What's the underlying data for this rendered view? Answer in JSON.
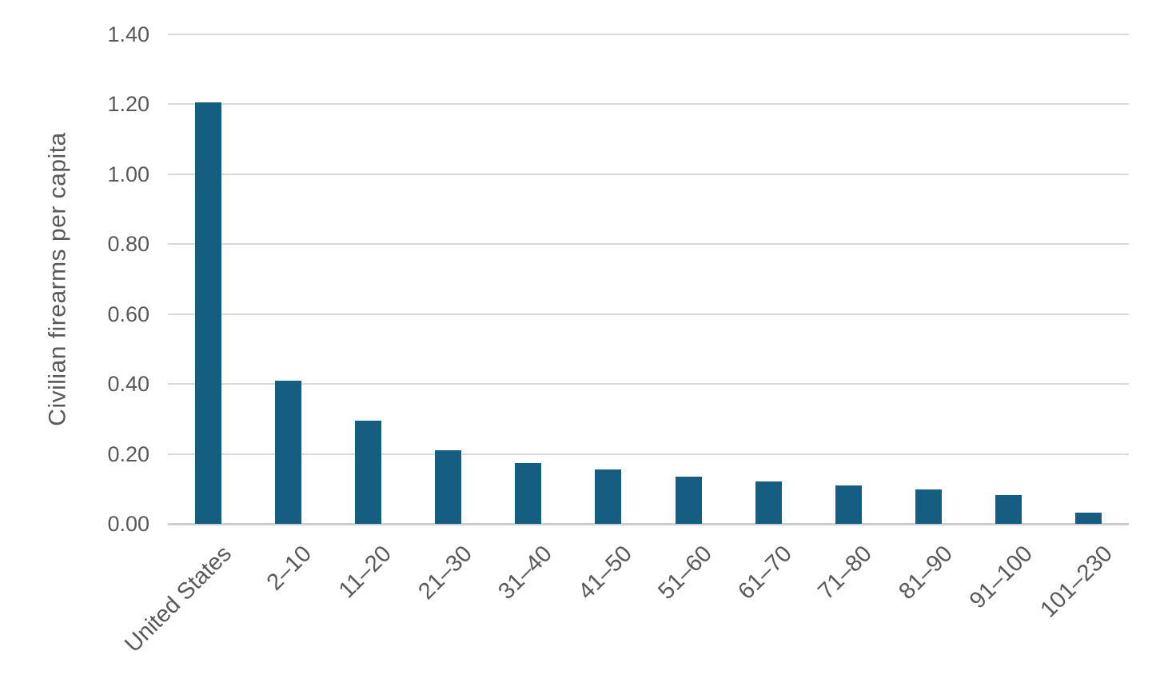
{
  "chart_data": {
    "type": "bar",
    "title": "",
    "xlabel": "",
    "ylabel": "Civilian firearms per capita",
    "categories": [
      "United States",
      "2–10",
      "11–20",
      "21–30",
      "31–40",
      "41–50",
      "51–60",
      "61–70",
      "71–80",
      "81–90",
      "91–100",
      "101–230"
    ],
    "values": [
      1.205,
      0.41,
      0.295,
      0.21,
      0.175,
      0.155,
      0.135,
      0.122,
      0.11,
      0.098,
      0.083,
      0.032
    ],
    "ylim": [
      0,
      1.4
    ],
    "yticks": [
      "0.00",
      "0.20",
      "0.40",
      "0.60",
      "0.80",
      "1.00",
      "1.20",
      "1.40"
    ],
    "grid": true,
    "legend": false,
    "bar_color": "#155e82",
    "gridline_color": "#d9d9d9",
    "text_color": "#595959"
  }
}
